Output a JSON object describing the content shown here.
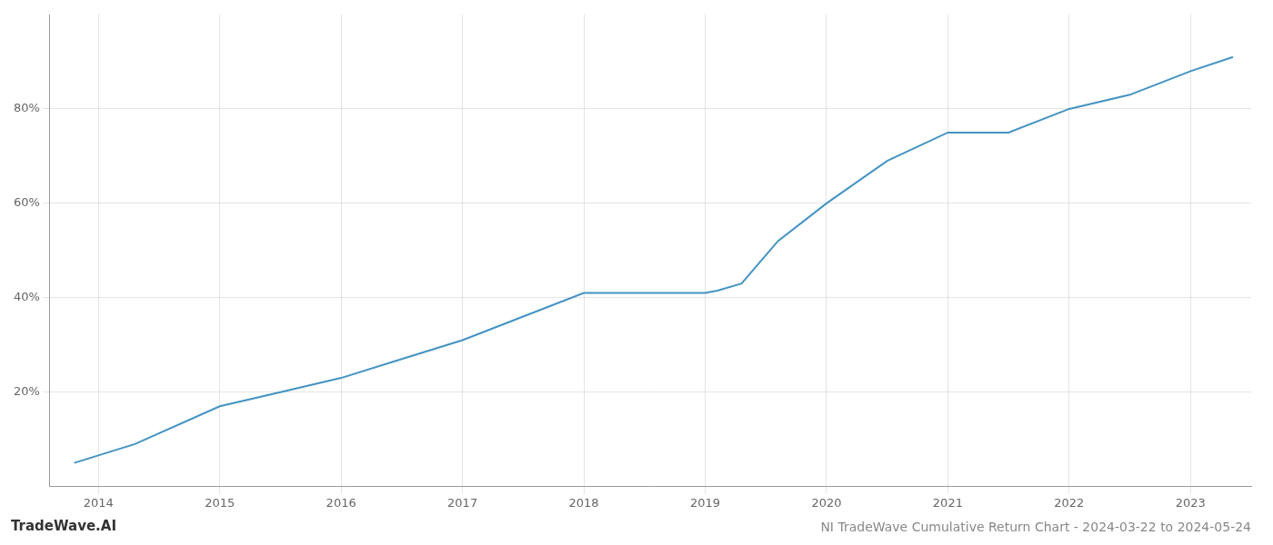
{
  "chart_data": {
    "type": "line",
    "title": "NI TradeWave Cumulative Return Chart - 2024-03-22 to 2024-05-24",
    "annotations": [
      "TradeWave.AI"
    ],
    "x": [
      2013.8,
      2014.3,
      2015.0,
      2015.5,
      2016.0,
      2016.5,
      2017.0,
      2017.5,
      2018.0,
      2018.3,
      2018.6,
      2019.0,
      2019.1,
      2019.3,
      2019.6,
      2020.0,
      2020.5,
      2021.0,
      2021.5,
      2022.0,
      2022.5,
      2023.0,
      2023.35
    ],
    "values": [
      5,
      9,
      17,
      20,
      23,
      27,
      31,
      36,
      41,
      41,
      41,
      41,
      41.5,
      43,
      52,
      60,
      69,
      75,
      75,
      80,
      83,
      88,
      91
    ],
    "color": "#4393c3",
    "xlim": [
      2013.6,
      2023.5
    ],
    "ylim": [
      0,
      100
    ],
    "xticks": [
      2014,
      2015,
      2016,
      2017,
      2018,
      2019,
      2020,
      2021,
      2022,
      2023
    ],
    "yticks": [
      {
        "value": 20,
        "label": "20%"
      },
      {
        "value": 40,
        "label": "40%"
      },
      {
        "value": 60,
        "label": "60%"
      },
      {
        "value": 80,
        "label": "80%"
      }
    ],
    "grid": true
  }
}
